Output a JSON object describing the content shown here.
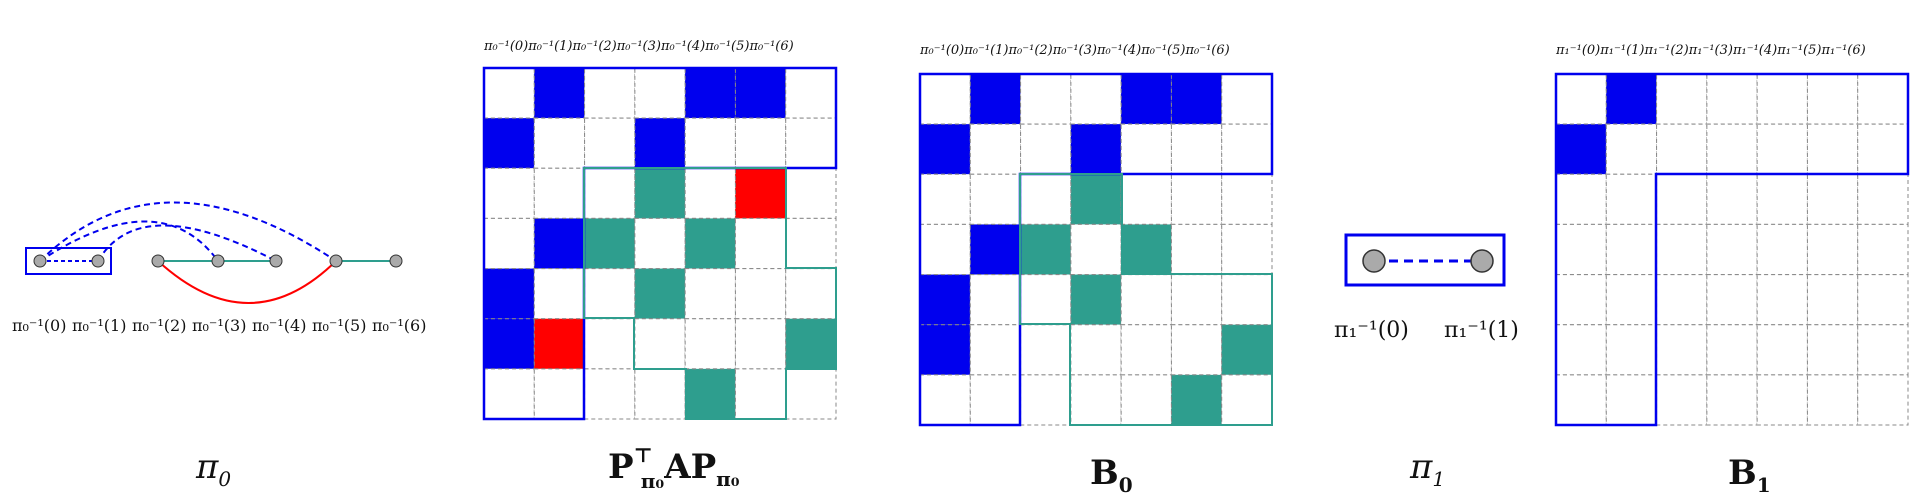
{
  "colors": {
    "blue": "#0000ee",
    "teal": "#2e9e8e",
    "red": "#ff0000",
    "grid": "#888888",
    "node": "#aaaaaa"
  },
  "panels": {
    "pi0": {
      "caption": "π",
      "caption_sub": "0",
      "node_labels": [
        "π₀⁻¹(0)",
        "π₀⁻¹(1)",
        "π₀⁻¹(2)",
        "π₀⁻¹(3)",
        "π₀⁻¹(4)",
        "π₀⁻¹(5)",
        "π₀⁻¹(6)"
      ]
    },
    "pap": {
      "caption": "P",
      "caption_sup": "⊤",
      "caption_sub": "π₀",
      "caption_mid": "AP",
      "caption_sub2": "π₀",
      "header": "π₀⁻¹(0)π₀⁻¹(1)π₀⁻¹(2)π₀⁻¹(3)π₀⁻¹(4)π₀⁻¹(5)π₀⁻¹(6)"
    },
    "b0": {
      "caption": "B",
      "caption_sub": "0",
      "header": "π₀⁻¹(0)π₀⁻¹(1)π₀⁻¹(2)π₀⁻¹(3)π₀⁻¹(4)π₀⁻¹(5)π₀⁻¹(6)"
    },
    "pi1": {
      "caption": "π",
      "caption_sub": "1",
      "node_labels": [
        "π₁⁻¹(0)",
        "π₁⁻¹(1)"
      ]
    },
    "b1": {
      "caption": "B",
      "caption_sub": "1",
      "header": "π₁⁻¹(0)π₁⁻¹(1)π₁⁻¹(2)π₁⁻¹(3)π₁⁻¹(4)π₁⁻¹(5)π₁⁻¹(6)"
    }
  },
  "matrices": {
    "pap": [
      "0B00BB0",
      "B00B000",
      "000T0R0",
      "0BT0T00",
      "B00T000",
      "BR0000T",
      "0000T00"
    ],
    "b0": [
      "0B00BB0",
      "B00B000",
      "000T000",
      "0BT0T00",
      "B00T000",
      "B00000T",
      "00000T0"
    ],
    "b1": [
      "0B00000",
      "B000000",
      "0000000",
      "0000000",
      "0000000",
      "0000000",
      "0000000"
    ]
  }
}
